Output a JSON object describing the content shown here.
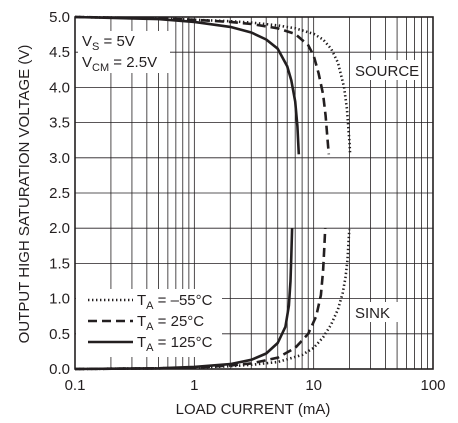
{
  "chart_data": {
    "type": "line",
    "xlabel": "LOAD CURRENT (mA)",
    "ylabel": "OUTPUT HIGH SATURATION VOLTAGE (V)",
    "x_scale": "log",
    "xlim": [
      0.1,
      100
    ],
    "ylim": [
      0,
      5.0
    ],
    "x_ticks": [
      0.1,
      1,
      10,
      100
    ],
    "x_tick_labels": [
      "0.1",
      "1",
      "10",
      "100"
    ],
    "y_ticks": [
      0,
      0.5,
      1.0,
      1.5,
      2.0,
      2.5,
      3.0,
      3.5,
      4.0,
      4.5,
      5.0
    ],
    "y_tick_labels": [
      "0.0",
      "0.5",
      "1.0",
      "1.5",
      "2.0",
      "2.5",
      "3.0",
      "3.5",
      "4.0",
      "4.5",
      "5.0"
    ],
    "grid": true,
    "conditions": [
      {
        "base": "V",
        "sub": "S",
        "rest": " = 5V"
      },
      {
        "base": "V",
        "sub": "CM",
        "rest": " = 2.5V"
      }
    ],
    "region_labels": {
      "source": "SOURCE",
      "sink": "SINK"
    },
    "legend_position": "bottom-left",
    "series": [
      {
        "name": "TA = –55°C",
        "legend": {
          "base": "T",
          "sub": "A",
          "rest": " = –55°C"
        },
        "style": "dotted",
        "source": {
          "x": [
            0.1,
            0.5,
            1,
            2,
            3,
            5,
            7,
            10,
            12,
            14,
            16,
            18,
            19,
            19.6,
            20,
            20.2
          ],
          "y": [
            5.0,
            4.98,
            4.96,
            4.94,
            4.92,
            4.88,
            4.84,
            4.76,
            4.68,
            4.55,
            4.35,
            4.0,
            3.7,
            3.4,
            3.2,
            3.05
          ]
        },
        "sink": {
          "x": [
            0.1,
            0.5,
            1,
            2,
            3,
            5,
            8,
            10,
            12,
            14,
            16,
            17.5,
            18.5,
            19.2,
            19.6,
            19.9
          ],
          "y": [
            0.0,
            0.01,
            0.02,
            0.04,
            0.06,
            0.1,
            0.2,
            0.3,
            0.45,
            0.63,
            0.85,
            1.08,
            1.3,
            1.55,
            1.8,
            1.98
          ]
        }
      },
      {
        "name": "TA = 25°C",
        "legend": {
          "base": "T",
          "sub": "A",
          "rest": " = 25°C"
        },
        "style": "dashed",
        "source": {
          "x": [
            0.1,
            0.5,
            1,
            2,
            3,
            5,
            7,
            9,
            10,
            11,
            12,
            12.6,
            13,
            13.4
          ],
          "y": [
            5.0,
            4.98,
            4.96,
            4.93,
            4.9,
            4.84,
            4.76,
            4.6,
            4.45,
            4.2,
            3.9,
            3.6,
            3.3,
            3.05
          ]
        },
        "sink": {
          "x": [
            0.1,
            0.5,
            1,
            2,
            3,
            5,
            7,
            9,
            10.5,
            11.5,
            12,
            12.3,
            12.5
          ],
          "y": [
            0.0,
            0.01,
            0.02,
            0.05,
            0.08,
            0.16,
            0.3,
            0.5,
            0.75,
            1.05,
            1.4,
            1.75,
            2.0
          ]
        }
      },
      {
        "name": "TA = 125°C",
        "legend": {
          "base": "T",
          "sub": "A",
          "rest": " = 125°C"
        },
        "style": "solid",
        "source": {
          "x": [
            0.1,
            0.5,
            1,
            2,
            3,
            4,
            5,
            6,
            6.5,
            7,
            7.3,
            7.5
          ],
          "y": [
            5.0,
            4.97,
            4.93,
            4.86,
            4.78,
            4.68,
            4.55,
            4.3,
            4.1,
            3.8,
            3.45,
            3.05
          ]
        },
        "sink": {
          "x": [
            0.1,
            0.5,
            1,
            2,
            3,
            4,
            5,
            5.8,
            6.2,
            6.4,
            6.5,
            6.6
          ],
          "y": [
            0.0,
            0.01,
            0.03,
            0.07,
            0.13,
            0.22,
            0.37,
            0.6,
            0.9,
            1.25,
            1.6,
            2.0
          ]
        }
      }
    ]
  }
}
